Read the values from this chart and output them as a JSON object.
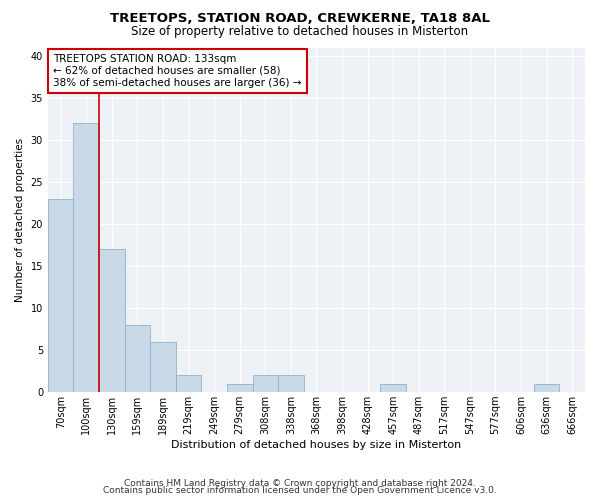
{
  "title": "TREETOPS, STATION ROAD, CREWKERNE, TA18 8AL",
  "subtitle": "Size of property relative to detached houses in Misterton",
  "xlabel": "Distribution of detached houses by size in Misterton",
  "ylabel": "Number of detached properties",
  "categories": [
    "70sqm",
    "100sqm",
    "130sqm",
    "159sqm",
    "189sqm",
    "219sqm",
    "249sqm",
    "279sqm",
    "308sqm",
    "338sqm",
    "368sqm",
    "398sqm",
    "428sqm",
    "457sqm",
    "487sqm",
    "517sqm",
    "547sqm",
    "577sqm",
    "606sqm",
    "636sqm",
    "666sqm"
  ],
  "values": [
    23,
    32,
    17,
    8,
    6,
    2,
    0,
    1,
    2,
    2,
    0,
    0,
    0,
    1,
    0,
    0,
    0,
    0,
    0,
    1,
    0
  ],
  "bar_color": "#c9d9e8",
  "bar_edge_color": "#8ab4cc",
  "highlight_line_color": "#cc0000",
  "highlight_line_index": 2,
  "annotation_line1": "TREETOPS STATION ROAD: 133sqm",
  "annotation_line2": "← 62% of detached houses are smaller (58)",
  "annotation_line3": "38% of semi-detached houses are larger (36) →",
  "annotation_box_color": "white",
  "annotation_box_edge_color": "#cc0000",
  "ylim": [
    0,
    41
  ],
  "yticks": [
    0,
    5,
    10,
    15,
    20,
    25,
    30,
    35,
    40
  ],
  "footer1": "Contains HM Land Registry data © Crown copyright and database right 2024.",
  "footer2": "Contains public sector information licensed under the Open Government Licence v3.0.",
  "plot_bg_color": "#eef2f7",
  "grid_color": "#ffffff",
  "title_fontsize": 9.5,
  "subtitle_fontsize": 8.5,
  "xlabel_fontsize": 8,
  "ylabel_fontsize": 7.5,
  "tick_fontsize": 7,
  "annotation_fontsize": 7.5,
  "footer_fontsize": 6.5
}
